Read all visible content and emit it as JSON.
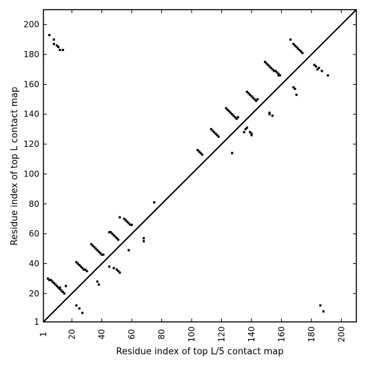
{
  "chart_data": {
    "type": "scatter",
    "title": "",
    "xlabel": "Residue index of top L/5 contact map",
    "ylabel": "Residue index of top L contact map",
    "xlim": [
      1,
      210
    ],
    "ylim": [
      1,
      210
    ],
    "xticks": [
      1,
      20,
      40,
      60,
      80,
      100,
      120,
      140,
      160,
      180,
      200
    ],
    "xtick_labels": [
      "1",
      "20",
      "40",
      "60",
      "80",
      "100",
      "120",
      "140",
      "160",
      "180",
      "200"
    ],
    "yticks": [
      1,
      20,
      40,
      60,
      80,
      100,
      120,
      140,
      160,
      180,
      200
    ],
    "ytick_labels": [
      "1",
      "20",
      "40",
      "60",
      "80",
      "100",
      "120",
      "140",
      "160",
      "180",
      "200"
    ],
    "diagonal": true,
    "grid": false,
    "legend": "none",
    "marker_color": "#000000",
    "series": [
      {
        "points": [
          [
            5,
            193
          ],
          [
            8,
            190
          ],
          [
            8,
            187
          ],
          [
            10,
            186
          ],
          [
            11,
            185
          ],
          [
            12,
            183
          ],
          [
            14,
            183
          ],
          [
            104,
            116
          ],
          [
            105,
            115
          ],
          [
            106,
            114
          ],
          [
            107,
            113
          ],
          [
            113,
            130
          ],
          [
            114,
            129
          ],
          [
            115,
            128
          ],
          [
            116,
            127
          ],
          [
            117,
            126
          ],
          [
            118,
            125
          ],
          [
            123,
            144
          ],
          [
            124,
            143
          ],
          [
            125,
            142
          ],
          [
            126,
            141
          ],
          [
            127,
            140
          ],
          [
            128,
            139
          ],
          [
            129,
            138
          ],
          [
            130,
            137
          ],
          [
            131,
            138
          ],
          [
            127,
            114
          ],
          [
            137,
            155
          ],
          [
            138,
            154
          ],
          [
            139,
            153
          ],
          [
            140,
            152
          ],
          [
            141,
            151
          ],
          [
            142,
            150
          ],
          [
            143,
            149
          ],
          [
            144,
            150
          ],
          [
            135,
            128
          ],
          [
            136,
            130
          ],
          [
            137,
            131
          ],
          [
            139,
            128
          ],
          [
            140,
            126
          ],
          [
            140,
            127
          ],
          [
            149,
            175
          ],
          [
            150,
            174
          ],
          [
            151,
            173
          ],
          [
            152,
            172
          ],
          [
            153,
            171
          ],
          [
            154,
            170
          ],
          [
            155,
            169
          ],
          [
            156,
            169
          ],
          [
            157,
            168
          ],
          [
            158,
            167
          ],
          [
            158,
            166
          ],
          [
            159,
            166
          ],
          [
            152,
            140
          ],
          [
            152,
            141
          ],
          [
            154,
            139
          ],
          [
            166,
            190
          ],
          [
            168,
            187
          ],
          [
            169,
            186
          ],
          [
            170,
            185
          ],
          [
            171,
            184
          ],
          [
            172,
            183
          ],
          [
            173,
            182
          ],
          [
            174,
            181
          ],
          [
            168,
            158
          ],
          [
            169,
            157
          ],
          [
            170,
            153
          ],
          [
            182,
            173
          ],
          [
            183,
            172
          ],
          [
            184,
            170
          ],
          [
            185,
            171
          ],
          [
            187,
            169
          ],
          [
            191,
            166
          ],
          [
            186,
            12
          ],
          [
            188,
            8
          ]
        ]
      },
      {
        "points": [
          [
            4,
            30
          ],
          [
            5,
            29
          ],
          [
            6,
            29
          ],
          [
            7,
            28
          ],
          [
            8,
            27
          ],
          [
            9,
            26
          ],
          [
            10,
            25
          ],
          [
            11,
            24
          ],
          [
            12,
            24
          ],
          [
            12,
            23
          ],
          [
            13,
            22
          ],
          [
            14,
            21
          ],
          [
            15,
            20
          ],
          [
            16,
            25
          ],
          [
            23,
            41
          ],
          [
            24,
            40
          ],
          [
            25,
            39
          ],
          [
            26,
            38
          ],
          [
            27,
            37
          ],
          [
            28,
            36
          ],
          [
            29,
            36
          ],
          [
            30,
            35
          ],
          [
            23,
            12
          ],
          [
            25,
            10
          ],
          [
            27,
            7
          ],
          [
            33,
            53
          ],
          [
            34,
            52
          ],
          [
            35,
            51
          ],
          [
            36,
            50
          ],
          [
            37,
            49
          ],
          [
            38,
            48
          ],
          [
            39,
            47
          ],
          [
            40,
            46
          ],
          [
            41,
            46
          ],
          [
            37,
            28
          ],
          [
            38,
            26
          ],
          [
            45,
            61
          ],
          [
            46,
            61
          ],
          [
            47,
            60
          ],
          [
            48,
            59
          ],
          [
            49,
            58
          ],
          [
            50,
            57
          ],
          [
            51,
            56
          ],
          [
            52,
            71
          ],
          [
            55,
            70
          ],
          [
            56,
            69
          ],
          [
            57,
            68
          ],
          [
            58,
            67
          ],
          [
            59,
            66
          ],
          [
            60,
            66
          ],
          [
            58,
            49
          ],
          [
            45,
            38
          ],
          [
            48,
            37
          ],
          [
            50,
            36
          ],
          [
            51,
            35
          ],
          [
            52,
            34
          ],
          [
            68,
            57
          ],
          [
            68,
            55
          ],
          [
            75,
            81
          ]
        ]
      }
    ]
  }
}
